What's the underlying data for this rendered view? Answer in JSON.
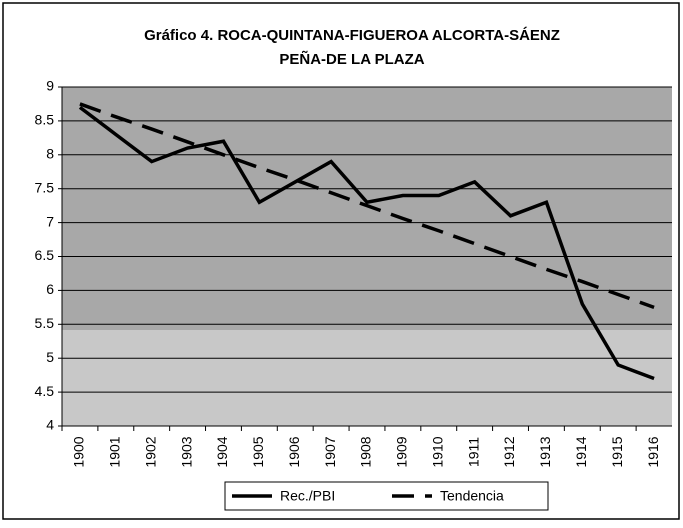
{
  "chart_data": {
    "type": "line",
    "title": [
      "Gráfico 4. ROCA-QUINTANA-FIGUEROA ALCORTA-SÁENZ",
      "PEÑA-DE LA PLAZA"
    ],
    "categories": [
      "1900",
      "1901",
      "1902",
      "1903",
      "1904",
      "1905",
      "1906",
      "1907",
      "1908",
      "1909",
      "1910",
      "1911",
      "1912",
      "1913",
      "1914",
      "1915",
      "1916"
    ],
    "series": [
      {
        "name": "Rec./PBI",
        "color": "#000000",
        "dashed": false,
        "values": [
          8.7,
          8.3,
          7.9,
          8.1,
          8.2,
          7.3,
          7.6,
          7.9,
          7.3,
          7.4,
          7.4,
          7.6,
          7.1,
          7.3,
          5.8,
          4.9,
          4.7
        ]
      },
      {
        "name": "Tendencia",
        "color": "#000000",
        "dashed": true,
        "values": [
          8.75,
          8.56,
          8.38,
          8.19,
          8.0,
          7.81,
          7.63,
          7.44,
          7.25,
          7.06,
          6.88,
          6.69,
          6.5,
          6.31,
          6.13,
          5.94,
          5.75
        ]
      }
    ],
    "ylim": [
      4,
      9
    ],
    "yticks": [
      4,
      4.5,
      5,
      5.5,
      6,
      6.5,
      7,
      7.5,
      8,
      8.5,
      9
    ],
    "grid": true,
    "legend": "bottom"
  }
}
